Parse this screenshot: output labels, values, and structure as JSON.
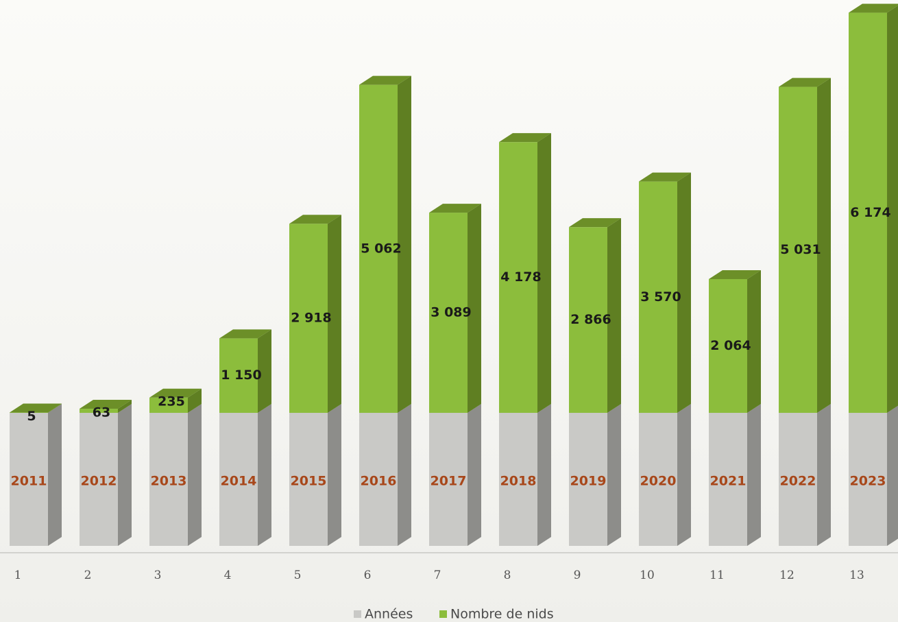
{
  "chart_data": {
    "type": "bar",
    "stacked": true,
    "three_d": true,
    "categories": [
      "1",
      "2",
      "3",
      "4",
      "5",
      "6",
      "7",
      "8",
      "9",
      "10",
      "11",
      "12",
      "13"
    ],
    "series": [
      {
        "name": "Années",
        "color": "#c9c9c6",
        "values": [
          2011,
          2012,
          2013,
          2014,
          2015,
          2016,
          2017,
          2018,
          2019,
          2020,
          2021,
          2022,
          2023
        ],
        "labels": [
          "2011",
          "2012",
          "2013",
          "2014",
          "2015",
          "2016",
          "2017",
          "2018",
          "2019",
          "2020",
          "2021",
          "2022",
          "2023"
        ]
      },
      {
        "name": "Nombre de nids",
        "color": "#8cbd3c",
        "values": [
          5,
          63,
          235,
          1150,
          2918,
          5062,
          3089,
          4178,
          2866,
          3570,
          2064,
          5031,
          6174
        ],
        "labels": [
          "5",
          "63",
          "235",
          "1 150",
          "2 918",
          "5 062",
          "3 089",
          "4 178",
          "2 866",
          "3 570",
          "2 064",
          "5 031",
          "6 174"
        ]
      }
    ],
    "legend_position": "bottom-center",
    "grid": false
  }
}
